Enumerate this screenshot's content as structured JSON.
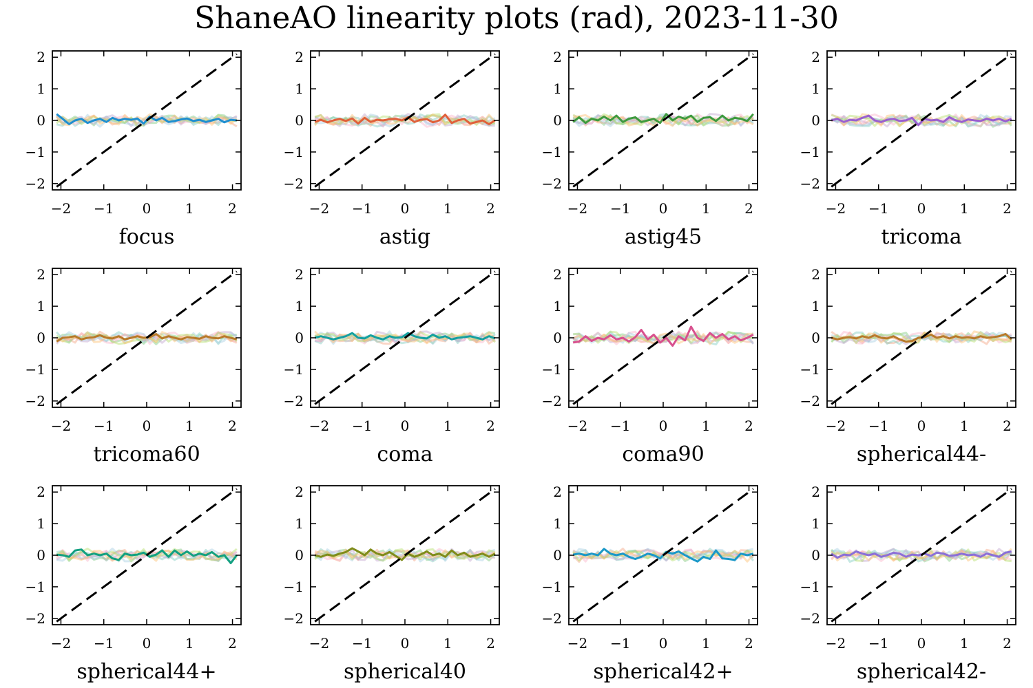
{
  "title": "ShaneAO linearity plots (rad), 2023-11-30",
  "chart_data": {
    "type": "line",
    "title": "ShaneAO linearity plots (rad), 2023-11-30",
    "xlim": [
      -2.2,
      2.2
    ],
    "ylim": [
      -2.2,
      2.2
    ],
    "x_ticks": [
      -2,
      -1,
      0,
      1,
      2
    ],
    "y_ticks": [
      -2,
      -1,
      0,
      1,
      2
    ],
    "x_tick_labels": [
      "−2",
      "−1",
      "0",
      "1",
      "2"
    ],
    "y_tick_labels": [
      "−2",
      "−1",
      "0",
      "1",
      "2"
    ],
    "grid": false,
    "reference_line": {
      "style": "dashed",
      "color": "#000000",
      "x": [
        -2.1,
        2.1
      ],
      "y": [
        -2.1,
        2.1
      ]
    },
    "x": [
      -2.1,
      -1.96,
      -1.81,
      -1.67,
      -1.52,
      -1.38,
      -1.23,
      -1.09,
      -0.94,
      -0.8,
      -0.65,
      -0.51,
      -0.36,
      -0.22,
      -0.07,
      0.07,
      0.22,
      0.36,
      0.51,
      0.65,
      0.8,
      0.94,
      1.09,
      1.23,
      1.38,
      1.52,
      1.67,
      1.81,
      1.96,
      2.1
    ],
    "background_series_colors": [
      "#7fc97f",
      "#f4a582",
      "#80cdc1",
      "#c2a5cf",
      "#fbb4c9",
      "#a6cee3",
      "#b3de69",
      "#fdbf6f"
    ],
    "panels": [
      {
        "label": "focus",
        "highlight_color": "#1f8fd0",
        "highlight": [
          0.2,
          0.05,
          -0.12,
          0.0,
          0.05,
          -0.08,
          0.0,
          0.05,
          -0.05,
          0.08,
          0.0,
          0.05,
          0.02,
          0.06,
          -0.1,
          0.12,
          0.0,
          0.08,
          -0.05,
          -0.02,
          0.03,
          0.06,
          -0.02,
          0.02,
          -0.05,
          0.0,
          0.05,
          -0.06,
          0.02,
          0.0
        ]
      },
      {
        "label": "astig",
        "highlight_color": "#e0603a",
        "highlight": [
          -0.05,
          0.02,
          -0.06,
          0.0,
          0.05,
          -0.02,
          0.06,
          -0.1,
          0.08,
          -0.05,
          0.02,
          0.0,
          0.04,
          0.05,
          0.0,
          0.1,
          -0.05,
          0.02,
          0.04,
          -0.06,
          0.0,
          0.18,
          -0.08,
          0.0,
          0.05,
          -0.1,
          -0.05,
          0.0,
          -0.12,
          0.0
        ]
      },
      {
        "label": "astig45",
        "highlight_color": "#3e9a3e",
        "highlight": [
          -0.05,
          0.1,
          -0.08,
          0.05,
          0.0,
          0.12,
          0.0,
          0.15,
          -0.05,
          0.05,
          0.1,
          -0.05,
          0.0,
          0.05,
          -0.08,
          0.2,
          0.0,
          0.12,
          0.05,
          0.15,
          -0.05,
          0.08,
          0.1,
          -0.02,
          0.15,
          0.0,
          0.08,
          0.05,
          -0.02,
          0.2
        ]
      },
      {
        "label": "tricoma",
        "highlight_color": "#9a5fd0",
        "highlight": [
          0.0,
          0.05,
          -0.05,
          0.02,
          0.0,
          0.08,
          0.15,
          0.0,
          -0.05,
          0.02,
          0.05,
          -0.02,
          0.0,
          0.08,
          -0.15,
          0.05,
          0.0,
          0.02,
          -0.05,
          0.1,
          0.0,
          -0.05,
          0.03,
          0.0,
          -0.02,
          0.05,
          0.0,
          0.05,
          -0.03,
          0.05
        ]
      },
      {
        "label": "tricoma60",
        "highlight_color": "#b87a2a",
        "highlight": [
          -0.12,
          0.0,
          0.02,
          0.05,
          -0.05,
          0.0,
          0.02,
          0.08,
          0.0,
          -0.02,
          0.05,
          -0.05,
          0.0,
          0.05,
          0.0,
          0.02,
          0.12,
          -0.02,
          0.05,
          0.0,
          -0.05,
          0.02,
          0.0,
          -0.03,
          0.05,
          0.0,
          -0.02,
          0.05,
          0.0,
          -0.05
        ]
      },
      {
        "label": "coma",
        "highlight_color": "#14a0a0",
        "highlight": [
          0.0,
          0.05,
          0.0,
          -0.05,
          0.0,
          0.05,
          0.15,
          0.0,
          -0.02,
          0.08,
          0.0,
          -0.05,
          0.05,
          0.0,
          0.02,
          0.15,
          0.05,
          0.0,
          -0.02,
          0.1,
          0.0,
          0.05,
          -0.05,
          0.0,
          0.02,
          0.05,
          0.0,
          -0.05,
          0.05,
          -0.02
        ]
      },
      {
        "label": "coma90",
        "highlight_color": "#d8508e",
        "highlight": [
          -0.15,
          -0.12,
          0.05,
          -0.1,
          0.0,
          -0.05,
          0.08,
          -0.05,
          0.0,
          -0.12,
          0.02,
          0.25,
          -0.05,
          0.1,
          -0.15,
          0.0,
          -0.25,
          0.05,
          -0.08,
          0.35,
          0.0,
          -0.1,
          0.15,
          0.0,
          0.12,
          -0.05,
          0.05,
          -0.08,
          0.0,
          0.1
        ]
      },
      {
        "label": "spherical44-",
        "highlight_color": "#b87a2a",
        "highlight": [
          0.0,
          -0.05,
          0.0,
          0.02,
          -0.02,
          0.05,
          0.0,
          0.08,
          0.0,
          -0.02,
          0.05,
          -0.05,
          -0.12,
          -0.1,
          0.0,
          0.02,
          0.1,
          0.0,
          0.05,
          -0.02,
          0.05,
          0.0,
          0.02,
          -0.02,
          0.05,
          0.0,
          0.02,
          0.05,
          0.12,
          -0.05
        ]
      },
      {
        "label": "spherical44+",
        "highlight_color": "#12a080",
        "highlight": [
          0.02,
          0.0,
          -0.05,
          0.15,
          0.18,
          0.0,
          0.05,
          0.0,
          0.05,
          -0.1,
          -0.15,
          0.05,
          0.0,
          0.02,
          0.08,
          -0.05,
          0.02,
          0.15,
          -0.05,
          0.15,
          0.0,
          0.12,
          -0.02,
          0.05,
          0.0,
          0.1,
          -0.05,
          0.0,
          -0.25,
          0.0
        ]
      },
      {
        "label": "spherical40",
        "highlight_color": "#7f8c1a",
        "highlight": [
          0.0,
          -0.05,
          0.02,
          -0.02,
          0.05,
          0.1,
          0.22,
          0.12,
          0.0,
          0.18,
          0.05,
          0.0,
          0.1,
          -0.02,
          -0.15,
          0.05,
          -0.05,
          0.02,
          0.12,
          0.0,
          0.05,
          -0.05,
          0.15,
          0.0,
          0.08,
          -0.05,
          0.0,
          0.05,
          -0.05,
          0.05
        ]
      },
      {
        "label": "spherical42+",
        "highlight_color": "#1a98c8",
        "highlight": [
          0.02,
          0.05,
          0.0,
          0.05,
          0.0,
          0.2,
          0.05,
          0.0,
          0.05,
          -0.05,
          -0.12,
          -0.05,
          0.05,
          0.0,
          -0.1,
          0.1,
          0.05,
          0.12,
          0.0,
          -0.1,
          -0.2,
          -0.05,
          -0.12,
          0.15,
          -0.1,
          -0.12,
          -0.15,
          0.05,
          0.0,
          0.05
        ]
      },
      {
        "label": "spherical42-",
        "highlight_color": "#8b6fd8",
        "highlight": [
          0.05,
          -0.08,
          0.02,
          0.0,
          0.12,
          0.05,
          0.0,
          0.05,
          -0.05,
          0.0,
          0.08,
          0.05,
          -0.05,
          0.02,
          0.0,
          0.05,
          -0.02,
          0.08,
          0.05,
          -0.02,
          0.0,
          0.05,
          0.0,
          0.02,
          -0.05,
          0.05,
          0.0,
          -0.05,
          0.08,
          0.12
        ]
      }
    ]
  }
}
